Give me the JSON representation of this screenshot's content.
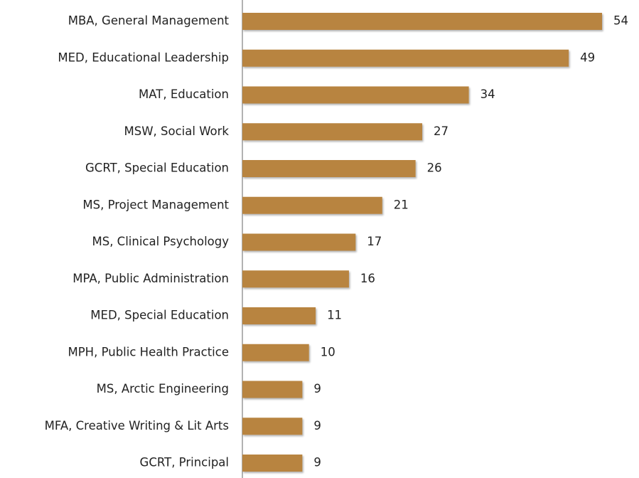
{
  "chart_data": {
    "type": "bar",
    "orientation": "horizontal",
    "categories": [
      "MBA, General Management",
      "MED, Educational Leadership",
      "MAT, Education",
      "MSW, Social Work",
      "GCRT, Special Education",
      "MS, Project Management",
      "MS, Clinical Psychology",
      "MPA, Public Administration",
      "MED, Special Education",
      "MPH, Public Health Practice",
      "MS, Arctic Engineering",
      "MFA, Creative Writing & Lit Arts",
      "GCRT, Principal"
    ],
    "values": [
      54,
      49,
      34,
      27,
      26,
      21,
      17,
      16,
      11,
      10,
      9,
      9,
      9
    ],
    "color": "#b8843f"
  }
}
